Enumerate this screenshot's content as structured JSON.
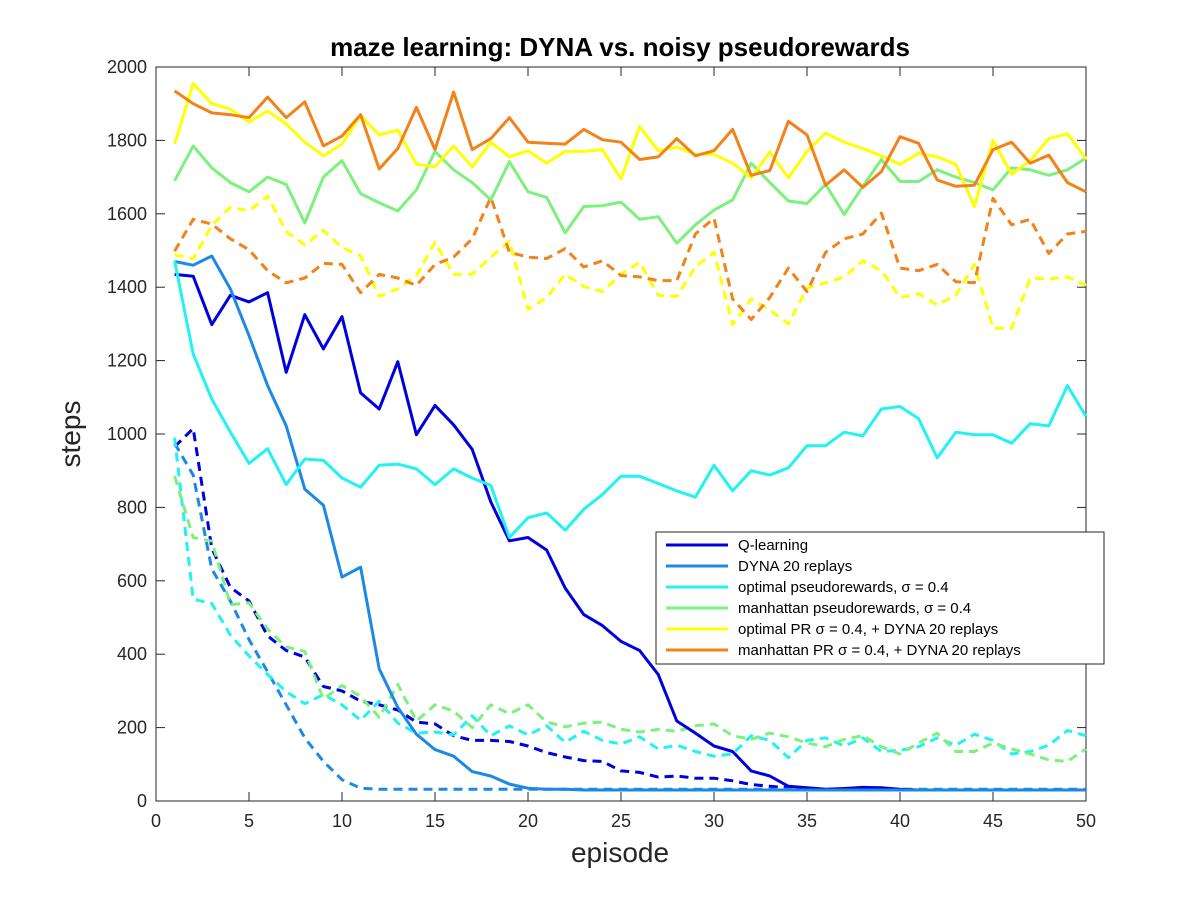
{
  "chart_data": {
    "type": "line",
    "title": "maze learning: DYNA vs. noisy pseudorewards",
    "xlabel": "episode",
    "ylabel": "steps",
    "xlim": [
      0,
      50
    ],
    "ylim": [
      0,
      2000
    ],
    "xticks": [
      0,
      5,
      10,
      15,
      20,
      25,
      30,
      35,
      40,
      45,
      50
    ],
    "yticks": [
      0,
      200,
      400,
      600,
      800,
      1000,
      1200,
      1400,
      1600,
      1800,
      2000
    ],
    "grid": false,
    "legend_position": "center-right",
    "x": [
      1,
      2,
      3,
      4,
      5,
      6,
      7,
      8,
      9,
      10,
      11,
      12,
      13,
      14,
      15,
      16,
      17,
      18,
      19,
      20,
      21,
      22,
      23,
      24,
      25,
      26,
      27,
      28,
      29,
      30,
      31,
      32,
      33,
      34,
      35,
      36,
      37,
      38,
      39,
      40,
      41,
      42,
      43,
      44,
      45,
      46,
      47,
      48,
      49,
      50
    ],
    "series": [
      {
        "name": "Q-learning",
        "legend_label": "Q-learning",
        "color": "#0000DD",
        "style": "solid",
        "values": [
          1435,
          1430,
          1298,
          1378,
          1360,
          1385,
          1168,
          1325,
          1232,
          1320,
          1112,
          1068,
          1197,
          998,
          1078,
          1025,
          958,
          815,
          709,
          718,
          684,
          580,
          508,
          478,
          435,
          410,
          345,
          218,
          185,
          150,
          135,
          82,
          68,
          40,
          36,
          32,
          34,
          37,
          36,
          32,
          30,
          30,
          30,
          30,
          30,
          30,
          30,
          30,
          30,
          30
        ]
      },
      {
        "name": "DYNA 20 replays",
        "legend_label": "DYNA 20 replays",
        "color": "#1E88E5",
        "style": "solid",
        "values": [
          1470,
          1460,
          1485,
          1395,
          1268,
          1132,
          1022,
          850,
          806,
          610,
          637,
          360,
          255,
          182,
          140,
          122,
          80,
          68,
          46,
          35,
          32,
          32,
          30,
          30,
          30,
          30,
          30,
          30,
          30,
          30,
          30,
          30,
          30,
          30,
          30,
          30,
          30,
          30,
          30,
          30,
          30,
          30,
          30,
          30,
          30,
          30,
          30,
          30,
          30,
          30
        ]
      },
      {
        "name": "optimal pseudorewards",
        "legend_label": "optimal pseudorewards, σ = 0.4",
        "color": "#22F2F2",
        "style": "solid",
        "values": [
          1472,
          1218,
          1095,
          1005,
          920,
          960,
          862,
          932,
          928,
          880,
          855,
          915,
          918,
          905,
          862,
          905,
          880,
          860,
          718,
          772,
          785,
          738,
          795,
          835,
          885,
          885,
          865,
          845,
          828,
          915,
          845,
          900,
          888,
          908,
          968,
          968,
          1005,
          995,
          1068,
          1075,
          1042,
          935,
          1005,
          998,
          998,
          975,
          1028,
          1022,
          1132,
          1048
        ]
      },
      {
        "name": "manhattan pseudorewards",
        "legend_label": "manhattan pseudorewards, σ = 0.4",
        "color": "#7DF07D",
        "style": "solid",
        "values": [
          1690,
          1785,
          1725,
          1685,
          1660,
          1700,
          1680,
          1575,
          1700,
          1745,
          1655,
          1630,
          1608,
          1665,
          1770,
          1720,
          1685,
          1638,
          1742,
          1660,
          1645,
          1548,
          1620,
          1622,
          1632,
          1585,
          1592,
          1520,
          1570,
          1610,
          1638,
          1738,
          1685,
          1635,
          1628,
          1680,
          1598,
          1675,
          1748,
          1688,
          1688,
          1720,
          1700,
          1685,
          1665,
          1725,
          1720,
          1705,
          1720,
          1752
        ]
      },
      {
        "name": "optimal PR + DYNA 20 replays",
        "legend_label": "optimal PR σ = 0.4, + DYNA 20 replays",
        "color": "#FFFF00",
        "style": "solid",
        "values": [
          1790,
          1955,
          1900,
          1885,
          1850,
          1880,
          1845,
          1795,
          1758,
          1790,
          1868,
          1815,
          1828,
          1735,
          1728,
          1785,
          1728,
          1795,
          1755,
          1772,
          1738,
          1770,
          1770,
          1775,
          1695,
          1838,
          1772,
          1782,
          1762,
          1762,
          1738,
          1698,
          1768,
          1698,
          1770,
          1820,
          1795,
          1778,
          1758,
          1735,
          1765,
          1755,
          1735,
          1620,
          1800,
          1708,
          1745,
          1805,
          1818,
          1750
        ]
      },
      {
        "name": "manhattan PR + DYNA 20 replays",
        "legend_label": "manhattan PR σ = 0.4, + DYNA 20 replays",
        "color": "#F2821A",
        "style": "solid",
        "values": [
          1935,
          1900,
          1875,
          1870,
          1862,
          1918,
          1862,
          1905,
          1785,
          1812,
          1870,
          1722,
          1778,
          1890,
          1775,
          1932,
          1775,
          1805,
          1862,
          1795,
          1792,
          1790,
          1830,
          1802,
          1795,
          1748,
          1755,
          1805,
          1758,
          1772,
          1830,
          1705,
          1718,
          1852,
          1815,
          1678,
          1720,
          1672,
          1715,
          1810,
          1792,
          1692,
          1675,
          1678,
          1775,
          1795,
          1738,
          1760,
          1685,
          1660
        ]
      },
      {
        "name": "Q-learning (dashed)",
        "color": "#0000DD",
        "style": "dashed",
        "values": [
          965,
          1015,
          688,
          582,
          545,
          450,
          410,
          392,
          312,
          300,
          272,
          262,
          248,
          215,
          210,
          178,
          165,
          165,
          162,
          150,
          132,
          120,
          110,
          108,
          82,
          78,
          65,
          68,
          62,
          62,
          55,
          45,
          40,
          36,
          35,
          32,
          31,
          30,
          30,
          30,
          30,
          30,
          30,
          30,
          30,
          30,
          30,
          30,
          30,
          30
        ]
      },
      {
        "name": "DYNA 20 replays (dashed)",
        "color": "#1E88E5",
        "style": "dashed",
        "values": [
          975,
          888,
          632,
          545,
          440,
          352,
          262,
          172,
          108,
          58,
          35,
          32,
          32,
          32,
          32,
          32,
          32,
          32,
          32,
          32,
          32,
          32,
          32,
          32,
          32,
          32,
          32,
          32,
          32,
          32,
          32,
          32,
          32,
          32,
          32,
          32,
          32,
          32,
          32,
          32,
          32,
          32,
          32,
          32,
          32,
          32,
          32,
          32,
          32,
          32
        ]
      },
      {
        "name": "optimal pseudorewards (dashed)",
        "color": "#22F2F2",
        "style": "dashed",
        "values": [
          990,
          550,
          538,
          452,
          395,
          345,
          298,
          265,
          290,
          262,
          220,
          272,
          212,
          185,
          188,
          180,
          232,
          178,
          205,
          180,
          205,
          160,
          190,
          165,
          155,
          175,
          142,
          152,
          135,
          122,
          128,
          178,
          165,
          118,
          165,
          172,
          150,
          172,
          135,
          138,
          148,
          172,
          152,
          182,
          165,
          128,
          135,
          152,
          192,
          178
        ]
      },
      {
        "name": "manhattan pseudorewards (dashed)",
        "color": "#7DF07D",
        "style": "dashed",
        "values": [
          885,
          718,
          708,
          535,
          540,
          468,
          420,
          408,
          278,
          315,
          285,
          228,
          318,
          218,
          262,
          245,
          200,
          262,
          238,
          262,
          215,
          202,
          212,
          215,
          195,
          188,
          195,
          190,
          205,
          210,
          178,
          168,
          185,
          175,
          158,
          148,
          168,
          178,
          148,
          128,
          158,
          185,
          135,
          135,
          158,
          142,
          128,
          112,
          108,
          142
        ]
      },
      {
        "name": "optimal PR + DYNA 20 replays (dashed)",
        "color": "#FFFF00",
        "style": "dashed",
        "values": [
          1488,
          1478,
          1568,
          1618,
          1608,
          1648,
          1552,
          1515,
          1555,
          1508,
          1485,
          1375,
          1395,
          1432,
          1522,
          1435,
          1435,
          1482,
          1525,
          1340,
          1372,
          1435,
          1402,
          1388,
          1435,
          1468,
          1378,
          1375,
          1455,
          1495,
          1298,
          1368,
          1338,
          1300,
          1398,
          1412,
          1428,
          1472,
          1445,
          1372,
          1382,
          1352,
          1378,
          1462,
          1288,
          1288,
          1425,
          1422,
          1428,
          1405
        ]
      },
      {
        "name": "manhattan PR + DYNA 20 replays (dashed)",
        "color": "#F2821A",
        "style": "dashed",
        "values": [
          1498,
          1585,
          1572,
          1532,
          1502,
          1445,
          1412,
          1425,
          1465,
          1462,
          1385,
          1435,
          1425,
          1405,
          1462,
          1482,
          1532,
          1645,
          1495,
          1482,
          1478,
          1505,
          1455,
          1472,
          1432,
          1428,
          1418,
          1418,
          1545,
          1588,
          1368,
          1312,
          1372,
          1452,
          1388,
          1495,
          1532,
          1545,
          1602,
          1452,
          1445,
          1462,
          1415,
          1412,
          1642,
          1570,
          1585,
          1492,
          1545,
          1552
        ]
      }
    ]
  }
}
